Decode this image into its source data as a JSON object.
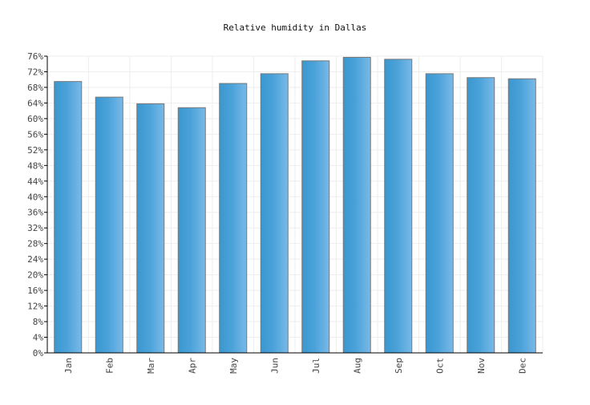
{
  "chart_data": {
    "type": "bar",
    "title": "Relative humidity in Dallas",
    "categories": [
      "Jan",
      "Feb",
      "Mar",
      "Apr",
      "May",
      "Jun",
      "Jul",
      "Aug",
      "Sep",
      "Oct",
      "Nov",
      "Dec"
    ],
    "values": [
      69.5,
      65.5,
      63.8,
      62.8,
      69.0,
      71.5,
      74.8,
      75.7,
      75.2,
      71.5,
      70.5,
      70.2
    ],
    "ylim": [
      0,
      76
    ],
    "yticks": [
      0,
      4,
      8,
      12,
      16,
      20,
      24,
      28,
      32,
      36,
      40,
      44,
      48,
      52,
      56,
      60,
      64,
      68,
      72,
      76
    ],
    "ytick_suffix": "%",
    "xlabel": "",
    "ylabel": "",
    "grid": true,
    "legend": false,
    "bar_color_dark": "#3b97cf",
    "bar_color_light": "#79b9e8"
  }
}
